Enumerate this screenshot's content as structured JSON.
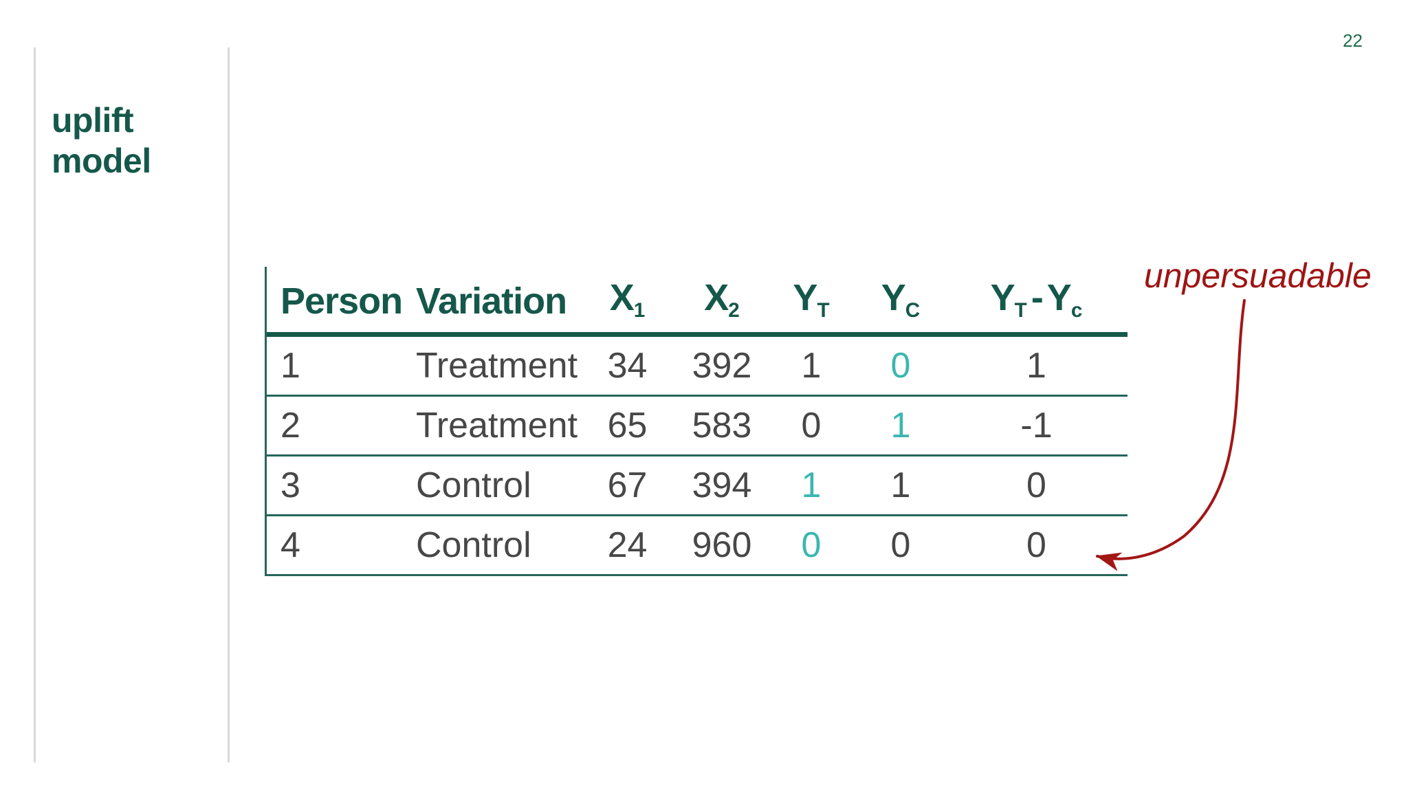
{
  "slide": {
    "page_number": "22",
    "title_lines": [
      "uplift",
      "model"
    ]
  },
  "colors": {
    "green": "#15584a",
    "line-green": "#26655a",
    "teal": "#3ab7b0",
    "red": "#9e1414",
    "text-gray": "#474747",
    "rule-gray": "#d9d9d9",
    "page-green": "#1d6e4e"
  },
  "table": {
    "columns": [
      {
        "align": "left",
        "parts": [
          {
            "t": "Person"
          }
        ]
      },
      {
        "align": "left",
        "parts": [
          {
            "t": "Variation"
          }
        ]
      },
      {
        "align": "center",
        "parts": [
          {
            "t": "X"
          },
          {
            "t": "1",
            "sub": true
          }
        ]
      },
      {
        "align": "center",
        "parts": [
          {
            "t": "X"
          },
          {
            "t": "2",
            "sub": true
          }
        ]
      },
      {
        "align": "center",
        "parts": [
          {
            "t": "Y"
          },
          {
            "t": "T",
            "sub": true
          }
        ]
      },
      {
        "align": "center",
        "parts": [
          {
            "t": "Y"
          },
          {
            "t": "C",
            "sub": true
          }
        ]
      },
      {
        "align": "center",
        "parts": [
          {
            "t": "Y"
          },
          {
            "t": "T",
            "sub": true
          },
          {
            "t": "-"
          },
          {
            "t": "Y"
          },
          {
            "t": "c",
            "sub": true
          }
        ]
      }
    ],
    "rows": [
      {
        "cells": [
          {
            "v": "1"
          },
          {
            "v": "Treatment"
          },
          {
            "v": "34"
          },
          {
            "v": "392"
          },
          {
            "v": "1"
          },
          {
            "v": "0",
            "teal": true
          },
          {
            "v": "1"
          }
        ]
      },
      {
        "cells": [
          {
            "v": "2"
          },
          {
            "v": "Treatment"
          },
          {
            "v": "65"
          },
          {
            "v": "583"
          },
          {
            "v": "0"
          },
          {
            "v": "1",
            "teal": true
          },
          {
            "v": "-1"
          }
        ]
      },
      {
        "cells": [
          {
            "v": "3"
          },
          {
            "v": "Control"
          },
          {
            "v": "67"
          },
          {
            "v": "394"
          },
          {
            "v": "1",
            "teal": true
          },
          {
            "v": "1"
          },
          {
            "v": "0"
          }
        ]
      },
      {
        "cells": [
          {
            "v": "4"
          },
          {
            "v": "Control"
          },
          {
            "v": "24"
          },
          {
            "v": "960"
          },
          {
            "v": "0",
            "teal": true
          },
          {
            "v": "0"
          },
          {
            "v": "0"
          }
        ]
      }
    ]
  },
  "annotation": {
    "label": "unpersuadable"
  }
}
